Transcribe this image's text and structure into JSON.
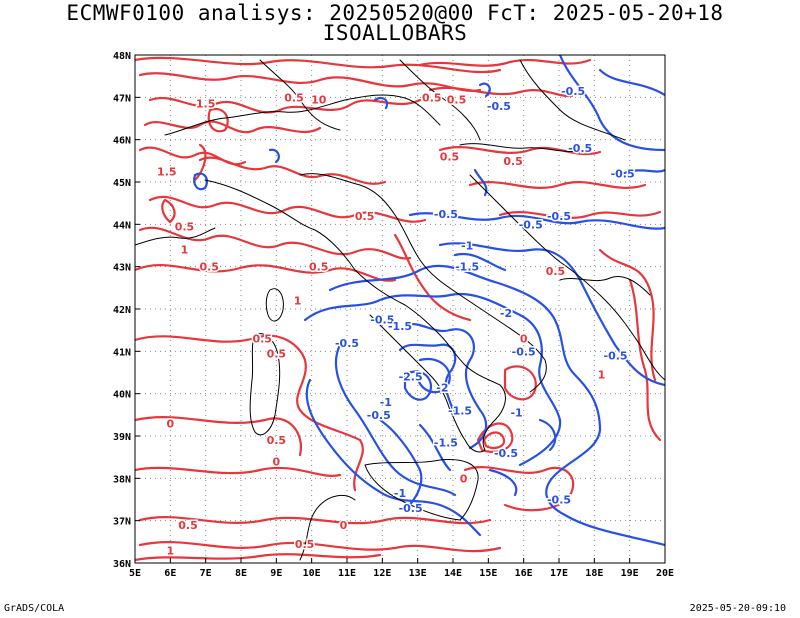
{
  "header": {
    "line1": "ECMWF0100 analisys: 20250520@00 FcT: 2025-05-20+18",
    "line2": "ISOALLOBARS"
  },
  "footer": {
    "left": "GrADS/COLA",
    "right": "2025-05-20-09:10"
  },
  "map": {
    "lon_ticks": [
      "5E",
      "6E",
      "7E",
      "8E",
      "9E",
      "10E",
      "11E",
      "12E",
      "13E",
      "14E",
      "15E",
      "16E",
      "17E",
      "18E",
      "19E",
      "20E"
    ],
    "lat_ticks": [
      "48N",
      "47N",
      "46N",
      "45N",
      "44N",
      "43N",
      "42N",
      "41N",
      "40N",
      "39N",
      "38N",
      "37N",
      "36N"
    ],
    "lon_range": [
      5,
      20
    ],
    "lat_range": [
      36,
      48
    ],
    "grid": "dotted",
    "colors": {
      "positive": "#e8373c",
      "negative": "#2850e6",
      "coast": "#000000",
      "grid": "#888888"
    },
    "contour_labels": [
      {
        "text": "1.5",
        "lon": 7.0,
        "lat": 46.85,
        "sign": "pos"
      },
      {
        "text": "0.5",
        "lon": 9.5,
        "lat": 47.0,
        "sign": "pos"
      },
      {
        "text": "10",
        "lon": 10.2,
        "lat": 46.95,
        "sign": "pos"
      },
      {
        "text": "0.5",
        "lon": 13.4,
        "lat": 47.0,
        "sign": "pos"
      },
      {
        "text": "0.5",
        "lon": 14.1,
        "lat": 46.95,
        "sign": "pos"
      },
      {
        "text": "0.5",
        "lon": 13.9,
        "lat": 45.6,
        "sign": "pos"
      },
      {
        "text": "-0.5",
        "lon": 15.3,
        "lat": 46.8,
        "sign": "neg"
      },
      {
        "text": "-0.5",
        "lon": 17.4,
        "lat": 47.15,
        "sign": "neg"
      },
      {
        "text": "-0.5",
        "lon": 17.6,
        "lat": 45.8,
        "sign": "neg"
      },
      {
        "text": "-0.5",
        "lon": 18.8,
        "lat": 45.2,
        "sign": "neg"
      },
      {
        "text": "-0.5",
        "lon": 13.8,
        "lat": 44.25,
        "sign": "neg"
      },
      {
        "text": "-0.5",
        "lon": 16.2,
        "lat": 44.0,
        "sign": "neg"
      },
      {
        "text": "-0.5",
        "lon": 17.0,
        "lat": 44.2,
        "sign": "neg"
      },
      {
        "text": "-1",
        "lon": 14.4,
        "lat": 43.5,
        "sign": "neg"
      },
      {
        "text": "-1.5",
        "lon": 14.4,
        "lat": 43.0,
        "sign": "neg"
      },
      {
        "text": "-2",
        "lon": 15.5,
        "lat": 41.9,
        "sign": "neg"
      },
      {
        "text": "-0.5",
        "lon": 12.0,
        "lat": 41.75,
        "sign": "neg"
      },
      {
        "text": "-1.5",
        "lon": 12.5,
        "lat": 41.6,
        "sign": "neg"
      },
      {
        "text": "-0.5",
        "lon": 11.0,
        "lat": 41.2,
        "sign": "neg"
      },
      {
        "text": "-0.5",
        "lon": 16.0,
        "lat": 41.0,
        "sign": "neg"
      },
      {
        "text": "-0.5",
        "lon": 18.6,
        "lat": 40.9,
        "sign": "neg"
      },
      {
        "text": "-2.5",
        "lon": 12.8,
        "lat": 40.4,
        "sign": "neg"
      },
      {
        "text": "-2",
        "lon": 13.7,
        "lat": 40.15,
        "sign": "neg"
      },
      {
        "text": "-1",
        "lon": 12.1,
        "lat": 39.8,
        "sign": "neg"
      },
      {
        "text": "-0.5",
        "lon": 11.9,
        "lat": 39.5,
        "sign": "neg"
      },
      {
        "text": "-1.5",
        "lon": 14.2,
        "lat": 39.6,
        "sign": "neg"
      },
      {
        "text": "-1",
        "lon": 15.8,
        "lat": 39.55,
        "sign": "neg"
      },
      {
        "text": "-1.5",
        "lon": 13.8,
        "lat": 38.85,
        "sign": "neg"
      },
      {
        "text": "-0.5",
        "lon": 15.5,
        "lat": 38.6,
        "sign": "neg"
      },
      {
        "text": "-0.5",
        "lon": 17.0,
        "lat": 37.5,
        "sign": "neg"
      },
      {
        "text": "-0.5",
        "lon": 12.8,
        "lat": 37.3,
        "sign": "neg"
      },
      {
        "text": "-1",
        "lon": 12.5,
        "lat": 37.65,
        "sign": "neg"
      },
      {
        "text": "1.5",
        "lon": 5.9,
        "lat": 45.25,
        "sign": "pos"
      },
      {
        "text": "1",
        "lon": 6.4,
        "lat": 43.4,
        "sign": "pos"
      },
      {
        "text": "0.5",
        "lon": 6.4,
        "lat": 43.95,
        "sign": "pos"
      },
      {
        "text": "0.5",
        "lon": 7.1,
        "lat": 43.0,
        "sign": "pos"
      },
      {
        "text": "0.5",
        "lon": 10.2,
        "lat": 43.0,
        "sign": "pos"
      },
      {
        "text": "0.5",
        "lon": 11.5,
        "lat": 44.2,
        "sign": "pos"
      },
      {
        "text": "1",
        "lon": 9.6,
        "lat": 42.2,
        "sign": "pos"
      },
      {
        "text": "0.5",
        "lon": 9.0,
        "lat": 40.95,
        "sign": "pos"
      },
      {
        "text": "0.5",
        "lon": 9.0,
        "lat": 38.9,
        "sign": "pos"
      },
      {
        "text": "0",
        "lon": 6.0,
        "lat": 39.3,
        "sign": "pos"
      },
      {
        "text": "0",
        "lon": 9.0,
        "lat": 38.4,
        "sign": "pos"
      },
      {
        "text": "0",
        "lon": 10.9,
        "lat": 36.9,
        "sign": "pos"
      },
      {
        "text": "0.5",
        "lon": 6.5,
        "lat": 36.9,
        "sign": "pos"
      },
      {
        "text": "0.5",
        "lon": 9.8,
        "lat": 36.45,
        "sign": "pos"
      },
      {
        "text": "1",
        "lon": 6.0,
        "lat": 36.3,
        "sign": "pos"
      },
      {
        "text": "0.5",
        "lon": 15.7,
        "lat": 45.5,
        "sign": "pos"
      },
      {
        "text": "0.5",
        "lon": 16.9,
        "lat": 42.9,
        "sign": "pos"
      },
      {
        "text": "0",
        "lon": 16.0,
        "lat": 41.3,
        "sign": "pos"
      },
      {
        "text": "1",
        "lon": 18.2,
        "lat": 40.45,
        "sign": "pos"
      },
      {
        "text": "0",
        "lon": 14.3,
        "lat": 38.0,
        "sign": "pos"
      },
      {
        "text": "0.5",
        "lon": 8.6,
        "lat": 41.3,
        "sign": "pos"
      }
    ]
  }
}
